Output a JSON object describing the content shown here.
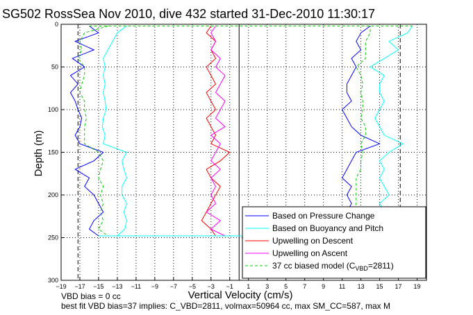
{
  "chart_data": {
    "type": "line",
    "title": "SG502 RossSea Nov 2010, dive 432 started 31-Dec-2010 11:30:17",
    "xlabel": "Vertical Velocity (cm/s)",
    "ylabel": "Depth (m)",
    "xlim": [
      -19,
      20
    ],
    "ylim": [
      300,
      0
    ],
    "y_reversed": true,
    "grid": true,
    "legend_position": "lower-right",
    "xticks": [
      -19,
      -17,
      -15,
      -13,
      -11,
      -9,
      -7,
      -5,
      -3,
      -1,
      1,
      3,
      5,
      7,
      9,
      11,
      13,
      15,
      17,
      19
    ],
    "yticks": [
      0,
      50,
      100,
      150,
      200,
      250,
      300
    ],
    "reference_lines": [
      {
        "x": 0,
        "style": "solid",
        "color": "#000000"
      },
      {
        "x": -17.2,
        "style": "dashed",
        "color": "#000000"
      },
      {
        "x": 17.2,
        "style": "dashed",
        "color": "#000000"
      }
    ],
    "series": [
      {
        "name": "Based on Pressure Change",
        "color": "#0000ff",
        "descent": {
          "depth": [
            2,
            10,
            20,
            30,
            40,
            50,
            60,
            70,
            80,
            90,
            100,
            110,
            120,
            130,
            140,
            150,
            160,
            170,
            180,
            190,
            200,
            210,
            220,
            230,
            240,
            248
          ],
          "velocity": [
            -16,
            -15,
            -17.5,
            -15.5,
            -17.8,
            -16.5,
            -18,
            -17.2,
            -18,
            -17.5,
            -17.2,
            -16.8,
            -17,
            -17.5,
            -17,
            -14.5,
            -15.5,
            -17.5,
            -16,
            -16.5,
            -15.5,
            -15,
            -14.5,
            -15.5,
            -16,
            -15
          ]
        },
        "ascent": {
          "depth": [
            248,
            240,
            230,
            220,
            210,
            200,
            190,
            180,
            170,
            160,
            150,
            140,
            130,
            120,
            110,
            100,
            90,
            80,
            70,
            60,
            50,
            40,
            30,
            20,
            10,
            2
          ],
          "velocity": [
            11.5,
            11,
            12.5,
            11.5,
            12,
            11.5,
            12,
            11,
            11.5,
            12,
            12.5,
            15,
            13,
            12,
            11.5,
            11,
            12,
            11.5,
            11.5,
            12,
            12.5,
            12,
            13,
            12.5,
            13,
            14
          ]
        }
      },
      {
        "name": "Based on Buoyancy and Pitch",
        "color": "#00ffff",
        "descent": {
          "depth": [
            2,
            10,
            20,
            30,
            40,
            50,
            60,
            70,
            80,
            90,
            100,
            110,
            120,
            130,
            140,
            150,
            160,
            170,
            180,
            190,
            200,
            210,
            220,
            230,
            240,
            248
          ],
          "velocity": [
            -12,
            -13,
            -13.5,
            -14,
            -14.5,
            -14.3,
            -14.5,
            -14.3,
            -14.5,
            -14.3,
            -14.2,
            -14.5,
            -14.6,
            -14.3,
            -14.5,
            -12,
            -12.5,
            -12.3,
            -12,
            -12.5,
            -12.5,
            -12,
            -12.3,
            -12,
            -12.2,
            -13
          ]
        },
        "ascent": {
          "depth": [
            248,
            240,
            230,
            220,
            210,
            200,
            190,
            180,
            170,
            160,
            150,
            140,
            130,
            120,
            110,
            100,
            90,
            80,
            70,
            60,
            50,
            40,
            30,
            20,
            10,
            2
          ],
          "velocity": [
            15.5,
            14.5,
            15,
            15.5,
            15,
            16,
            15.5,
            15,
            15.5,
            15,
            16,
            17.5,
            15.5,
            15,
            14.5,
            15,
            15.5,
            15,
            15,
            15.5,
            14,
            15.5,
            17,
            16,
            18,
            18.5
          ]
        }
      },
      {
        "name": "Upwelling on Descent",
        "color": "#ff0000",
        "depth": [
          2,
          10,
          20,
          30,
          40,
          50,
          60,
          70,
          80,
          90,
          100,
          110,
          120,
          130,
          140,
          150,
          160,
          170,
          180,
          190,
          200,
          210,
          220,
          230,
          240,
          248
        ],
        "velocity": [
          -3,
          -3.5,
          -2.5,
          -3,
          -2.5,
          -3.5,
          -3,
          -2.5,
          -3.5,
          -3,
          -2.5,
          -3.5,
          -3,
          -2.5,
          -3,
          -1,
          -2,
          -3.5,
          -3,
          -2,
          -2.5,
          -3,
          -3.5,
          -4,
          -3,
          -2.5
        ]
      },
      {
        "name": "Upwelling on Ascent",
        "color": "#ff00ff",
        "depth": [
          248,
          240,
          230,
          220,
          210,
          200,
          190,
          180,
          170,
          160,
          150,
          140,
          130,
          120,
          110,
          100,
          90,
          80,
          70,
          60,
          50,
          40,
          30,
          20,
          10,
          2
        ],
        "velocity": [
          -1.5,
          -3,
          -2,
          -3.5,
          -2.5,
          -3,
          -2.5,
          -3,
          -2,
          -3,
          -2.5,
          -2,
          -3,
          -1.5,
          -2.5,
          -2,
          -1.5,
          -2.5,
          -2,
          -1.5,
          -2.5,
          -2,
          -3,
          -2.5,
          -3,
          -2.5
        ]
      },
      {
        "name": "37 cc biased model (C",
        "name_subscript": "VBD",
        "name_suffix": "=2811)",
        "color": "#00cc00",
        "style": "dashed",
        "descent": {
          "depth": [
            2,
            10,
            20,
            30,
            40,
            50,
            60,
            70,
            80,
            90,
            100,
            110,
            120,
            130,
            140,
            150,
            160,
            170,
            180,
            190,
            200,
            210,
            220,
            230,
            240,
            248
          ],
          "velocity": [
            -14,
            -16.5,
            -17,
            -16.8,
            -17.2,
            -16.5,
            -16.5,
            -16.8,
            -17,
            -16.5,
            -16.5,
            -16.3,
            -16.5,
            -16.5,
            -16.5,
            -15,
            -14.5,
            -14.8,
            -15,
            -14.5,
            -14.8,
            -14.5,
            -14.8,
            -14.5,
            -15,
            -14
          ]
        },
        "ascent": {
          "depth": [
            248,
            240,
            230,
            220,
            210,
            200,
            190,
            180,
            170,
            160,
            150,
            140,
            130,
            120,
            110,
            100,
            90,
            80,
            70,
            60,
            50,
            40,
            30,
            20,
            10,
            2
          ],
          "velocity": [
            12,
            11.5,
            12,
            12.2,
            12.5,
            12.5,
            12.5,
            12.5,
            13,
            13,
            13.2,
            13,
            13.5,
            13.5,
            13,
            13.2,
            13.2,
            13,
            13.2,
            13,
            12.5,
            13.5,
            13.5,
            13.5,
            14,
            14
          ]
        }
      }
    ]
  },
  "footer": {
    "line1": "VBD bias = 0 cc",
    "line2": "best fit VBD bias=37 implies: C_VBD=2811, volmax=50964 cc, max SM_CC=587, max M"
  }
}
